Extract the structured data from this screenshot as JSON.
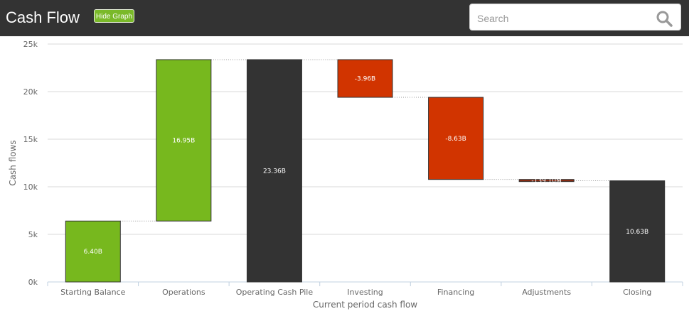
{
  "header": {
    "title": "Cash Flow",
    "toggle_graph_label": "Hide Graph",
    "search_placeholder": "Search"
  },
  "colors": {
    "header_bg": "#333333",
    "positive": "#77b81e",
    "negative": "#d13400",
    "total": "#333333",
    "adjustment": "#8a2a10"
  },
  "chart_data": {
    "type": "bar",
    "subtype": "waterfall",
    "title": "",
    "xlabel": "Current period cash flow",
    "ylabel": "Cash flows",
    "ylim": [
      0,
      25000
    ],
    "y_ticks": [
      0,
      5000,
      10000,
      15000,
      20000,
      25000
    ],
    "y_tick_labels": [
      "0k",
      "5k",
      "10k",
      "15k",
      "20k",
      "25k"
    ],
    "grid": true,
    "categories": [
      "Starting Balance",
      "Operations",
      "Operating Cash Pile",
      "Investing",
      "Financing",
      "Adjustments",
      "Closing"
    ],
    "bars": [
      {
        "category": "Starting Balance",
        "kind": "positive",
        "start": 0,
        "end": 6400,
        "label": "6.40B"
      },
      {
        "category": "Operations",
        "kind": "positive",
        "start": 6400,
        "end": 23360,
        "label": "16.95B"
      },
      {
        "category": "Operating Cash Pile",
        "kind": "total",
        "start": 0,
        "end": 23360,
        "label": "23.36B"
      },
      {
        "category": "Investing",
        "kind": "negative",
        "start": 23360,
        "end": 19400,
        "label": "-3.96B"
      },
      {
        "category": "Financing",
        "kind": "negative",
        "start": 19400,
        "end": 10770,
        "label": "-8.63B"
      },
      {
        "category": "Adjustments",
        "kind": "adjustment",
        "start": 10770,
        "end": 10630,
        "label": "-139.10M"
      },
      {
        "category": "Closing",
        "kind": "total",
        "start": 0,
        "end": 10630,
        "label": "10.63B"
      }
    ]
  }
}
